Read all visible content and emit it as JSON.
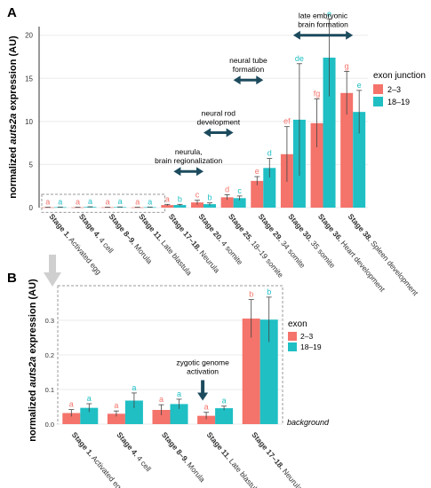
{
  "colors": {
    "red": "#f4736b",
    "teal": "#1fbfc4",
    "arrow": "#1d4b5e",
    "grid": "#ebebeb",
    "axis": "#333333",
    "dash": "#9a9a9a",
    "bigArrow": "#cfcfcf"
  },
  "panels": {
    "A": "A",
    "B": "B"
  },
  "chart_data": [
    {
      "type": "bar",
      "ylabel_pre": "normalized ",
      "ylabel_it": "auts2a",
      "ylabel_post": " expression (AU)",
      "ylim": [
        0,
        21
      ],
      "yticks": [
        0,
        5,
        10,
        15,
        20
      ],
      "categories": [
        {
          "bold": "Stage 1.",
          "rest": " Activated egg"
        },
        {
          "bold": "Stage 4.",
          "rest": " 4 cell"
        },
        {
          "bold": "Stage 8–9.",
          "rest": " Morula"
        },
        {
          "bold": "Stage 11.",
          "rest": " Late blastula"
        },
        {
          "bold": "Stage 17–18.",
          "rest": " Neurula"
        },
        {
          "bold": "Stage 20.",
          "rest": " 4 somite"
        },
        {
          "bold": "Stage 25.",
          "rest": " 18–19 somite"
        },
        {
          "bold": "Stage 29.",
          "rest": " 34 somite"
        },
        {
          "bold": "Stage 30.",
          "rest": " 35 somite"
        },
        {
          "bold": "Stage 36.",
          "rest": " Heart development"
        },
        {
          "bold": "Stage 38.",
          "rest": " Spleen development"
        }
      ],
      "legend": {
        "title": "exon junction",
        "items": [
          "2–3",
          "18–19"
        ],
        "position": "right"
      },
      "series": [
        {
          "name": "2–3",
          "values": [
            0.03,
            0.03,
            0.04,
            0.03,
            0.3,
            0.6,
            1.2,
            3.1,
            6.2,
            9.8,
            13.3
          ],
          "err": [
            0.02,
            0.02,
            0.02,
            0.02,
            0.08,
            0.25,
            0.3,
            0.5,
            3.2,
            2.8,
            2.5
          ],
          "letters": [
            "a",
            "a",
            "a",
            "a",
            "a",
            "c",
            "d",
            "e",
            "ef",
            "fg",
            "g"
          ]
        },
        {
          "name": "18–19",
          "values": [
            0.05,
            0.07,
            0.06,
            0.05,
            0.3,
            0.4,
            1.1,
            4.6,
            10.2,
            17.4,
            11.1
          ],
          "err": [
            0.02,
            0.03,
            0.02,
            0.02,
            0.08,
            0.15,
            0.25,
            1.1,
            6.5,
            4.5,
            2.5
          ],
          "letters": [
            "a",
            "a",
            "a",
            "a",
            "b",
            "b",
            "c",
            "d",
            "de",
            "e",
            "e"
          ]
        }
      ],
      "annotations": [
        {
          "lines": [
            "neurula,",
            "brain regionalization"
          ],
          "x0": 4,
          "x1": 5,
          "y": 4.2
        },
        {
          "lines": [
            "neural rod",
            "development"
          ],
          "x0": 5,
          "x1": 6,
          "y": 8.7
        },
        {
          "lines": [
            "neural tube",
            "formation"
          ],
          "x0": 6,
          "x1": 7,
          "y": 14.8
        },
        {
          "lines": [
            "late embryonic",
            "brain formation"
          ],
          "x0": 8,
          "x1": 10,
          "y": 20.0
        }
      ]
    },
    {
      "type": "bar",
      "ylabel_pre": "normalized ",
      "ylabel_it": "auts2a",
      "ylabel_post": " expression (AU)",
      "ylim": [
        0,
        0.4
      ],
      "yticks": [
        0.0,
        0.1,
        0.2,
        0.3
      ],
      "ytick_labels": [
        "0.0",
        "0.1",
        "0.2",
        "0.3"
      ],
      "categories": [
        {
          "bold": "Stage 1.",
          "rest": " Activated egg"
        },
        {
          "bold": "Stage 4.",
          "rest": " 4 cell"
        },
        {
          "bold": "Stage 8–9.",
          "rest": " Morula"
        },
        {
          "bold": "Stage 11.",
          "rest": " Late blastula"
        },
        {
          "bold": "Stage 17–18.",
          "rest": " Neurula"
        }
      ],
      "legend": {
        "title": "exon",
        "items": [
          "2–3",
          "18–19"
        ],
        "position": "right"
      },
      "series": [
        {
          "name": "2–3",
          "values": [
            0.032,
            0.03,
            0.041,
            0.024,
            0.305
          ],
          "err": [
            0.01,
            0.008,
            0.015,
            0.01,
            0.055
          ],
          "letters": [
            "a",
            "a",
            "a",
            "a",
            "b"
          ]
        },
        {
          "name": "18–19",
          "values": [
            0.047,
            0.068,
            0.058,
            0.046,
            0.302
          ],
          "err": [
            0.012,
            0.022,
            0.014,
            0.006,
            0.065
          ],
          "letters": [
            "a",
            "a",
            "a",
            "a",
            "b"
          ]
        }
      ],
      "annotation": {
        "lines": [
          "zygotic genome",
          "activation"
        ],
        "x": 3,
        "y": 0.145
      },
      "background_label": "background"
    }
  ]
}
